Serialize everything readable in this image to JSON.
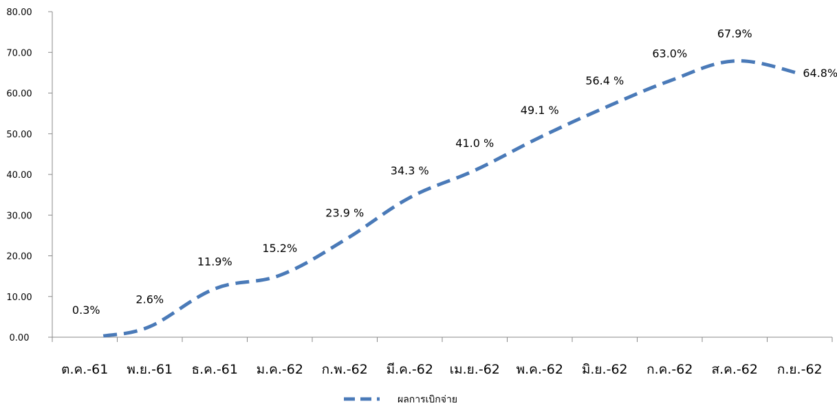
{
  "chart_data": {
    "type": "line",
    "categories": [
      "ต.ค.-61",
      "พ.ย.-61",
      "ธ.ค.-61",
      "ม.ค.-62",
      "ก.พ.-62",
      "มี.ค.-62",
      "เม.ย.-62",
      "พ.ค.-62",
      "มิ.ย.-62",
      "ก.ค.-62",
      "ส.ค.-62",
      "ก.ย.-62"
    ],
    "series": [
      {
        "name": "ผลการเบิกจ่าย",
        "values": [
          0.3,
          2.6,
          11.9,
          15.2,
          23.9,
          34.3,
          41.0,
          49.1,
          56.4,
          63.0,
          67.9,
          64.8
        ],
        "data_labels": [
          "0.3%",
          "2.6%",
          "11.9%",
          "15.2%",
          "23.9 %",
          "34.3 %",
          "41.0 %",
          "49.1 %",
          "56.4 %",
          "63.0%",
          "67.9%",
          "64.8%"
        ],
        "color": "#4a7ab8",
        "dash": "dashed"
      }
    ],
    "yticks": [
      "0.00",
      "10.00",
      "20.00",
      "30.00",
      "40.00",
      "50.00",
      "60.00",
      "70.00",
      "80.00"
    ],
    "ylim": [
      0,
      80
    ],
    "grid": false,
    "legend_position": "bottom-center",
    "title": "",
    "xlabel": "",
    "ylabel": ""
  }
}
